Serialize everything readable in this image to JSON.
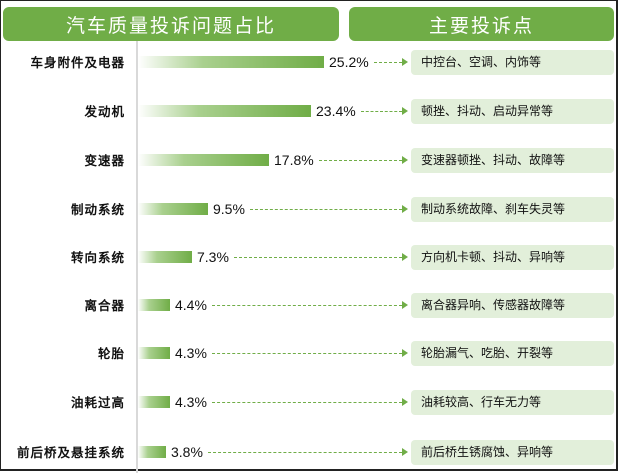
{
  "header": {
    "left_title": "汽车质量投诉问题占比",
    "right_title": "主要投诉点"
  },
  "colors": {
    "accent": "#70AD47",
    "box_bg": "#E2EFDA",
    "axis": "#D9D9D9"
  },
  "rows": [
    {
      "category": "车身附件及电器",
      "value_label": "25.2%",
      "complaint": "中控台、空调、内饰等"
    },
    {
      "category": "发动机",
      "value_label": "23.4%",
      "complaint": "顿挫、抖动、启动异常等"
    },
    {
      "category": "变速器",
      "value_label": "17.8%",
      "complaint": "变速器顿挫、抖动、故障等"
    },
    {
      "category": "制动系统",
      "value_label": "9.5%",
      "complaint": "制动系统故障、刹车失灵等"
    },
    {
      "category": "转向系统",
      "value_label": "7.3%",
      "complaint": "方向机卡顿、抖动、异响等"
    },
    {
      "category": "离合器",
      "value_label": "4.4%",
      "complaint": "离合器异响、传感器故障等"
    },
    {
      "category": "轮胎",
      "value_label": "4.3%",
      "complaint": "轮胎漏气、吃胎、开裂等"
    },
    {
      "category": "油耗过高",
      "value_label": "4.3%",
      "complaint": "油耗较高、行车无力等"
    },
    {
      "category": "前后桥及悬挂系统",
      "value_label": "3.8%",
      "complaint": "前后桥生锈腐蚀、异响等"
    }
  ],
  "chart_data": {
    "type": "bar",
    "orientation": "horizontal",
    "title": "汽车质量投诉问题占比",
    "side_panel_title": "主要投诉点",
    "categories": [
      "车身附件及电器",
      "发动机",
      "变速器",
      "制动系统",
      "转向系统",
      "离合器",
      "轮胎",
      "油耗过高",
      "前后桥及悬挂系统"
    ],
    "values": [
      25.2,
      23.4,
      17.8,
      9.5,
      7.3,
      4.4,
      4.3,
      4.3,
      3.8
    ],
    "unit": "%",
    "annotations": [
      "中控台、空调、内饰等",
      "顿挫、抖动、启动异常等",
      "变速器顿挫、抖动、故障等",
      "制动系统故障、刹车失灵等",
      "方向机卡顿、抖动、异响等",
      "离合器异响、传感器故障等",
      "轮胎漏气、吃胎、开裂等",
      "油耗较高、行车无力等",
      "前后桥生锈腐蚀、异响等"
    ],
    "xlabel": "",
    "ylabel": "",
    "grid": false,
    "legend": "none"
  }
}
